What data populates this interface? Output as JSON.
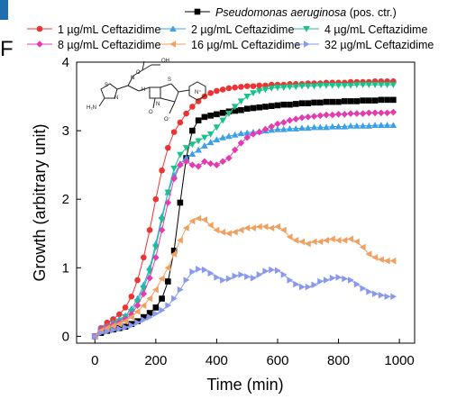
{
  "panel_label": "F",
  "colors": {
    "corner_accent": "#1f6fb0"
  },
  "chart_data": {
    "type": "line",
    "xlabel": "Time (min)",
    "ylabel": "Growth (arbitrary unit)",
    "xlim": [
      -60,
      1050
    ],
    "ylim": [
      -0.1,
      4.0
    ],
    "xticks": [
      0,
      200,
      400,
      600,
      800,
      1000
    ],
    "yticks": [
      0,
      1,
      2,
      3,
      4
    ],
    "grid": false,
    "legend_position": "top",
    "inset": "ceftazidime-structure",
    "series": [
      {
        "name_italic": "Pseudomonas aeruginosa",
        "name": " (pos. ctr.)",
        "color": "#000000",
        "marker": "square",
        "x": [
          0,
          20,
          40,
          60,
          80,
          100,
          120,
          140,
          160,
          180,
          200,
          220,
          240,
          260,
          280,
          300,
          320,
          340,
          360,
          380,
          400,
          420,
          440,
          460,
          480,
          500,
          520,
          540,
          560,
          580,
          600,
          620,
          640,
          660,
          680,
          700,
          720,
          740,
          760,
          780,
          800,
          820,
          840,
          860,
          880,
          900,
          920,
          940,
          960,
          980
        ],
        "y": [
          0,
          0.05,
          0.08,
          0.1,
          0.12,
          0.14,
          0.18,
          0.22,
          0.28,
          0.34,
          0.42,
          0.55,
          0.8,
          1.25,
          1.95,
          2.6,
          3.0,
          3.15,
          3.2,
          3.22,
          3.24,
          3.26,
          3.28,
          3.29,
          3.3,
          3.32,
          3.33,
          3.34,
          3.35,
          3.36,
          3.37,
          3.38,
          3.38,
          3.39,
          3.4,
          3.4,
          3.41,
          3.41,
          3.42,
          3.42,
          3.42,
          3.43,
          3.43,
          3.43,
          3.44,
          3.44,
          3.44,
          3.45,
          3.45,
          3.45
        ]
      },
      {
        "name": "1 µg/mL Ceftazidime",
        "color": "#ee3333",
        "marker": "circle",
        "x": [
          0,
          20,
          40,
          60,
          80,
          100,
          120,
          140,
          160,
          180,
          200,
          220,
          240,
          260,
          280,
          300,
          320,
          340,
          360,
          380,
          400,
          420,
          440,
          460,
          480,
          500,
          520,
          540,
          560,
          580,
          600,
          620,
          640,
          660,
          680,
          700,
          720,
          740,
          760,
          780,
          800,
          820,
          840,
          860,
          880,
          900,
          920,
          940,
          960,
          980
        ],
        "y": [
          0,
          0.12,
          0.2,
          0.25,
          0.32,
          0.42,
          0.58,
          0.82,
          1.15,
          1.55,
          2.0,
          2.42,
          2.75,
          2.98,
          3.12,
          3.25,
          3.35,
          3.43,
          3.5,
          3.55,
          3.58,
          3.6,
          3.62,
          3.63,
          3.64,
          3.65,
          3.65,
          3.66,
          3.66,
          3.67,
          3.67,
          3.67,
          3.68,
          3.68,
          3.68,
          3.69,
          3.69,
          3.69,
          3.7,
          3.7,
          3.7,
          3.7,
          3.71,
          3.71,
          3.71,
          3.71,
          3.72,
          3.72,
          3.72,
          3.72
        ]
      },
      {
        "name": "2 µg/mL Ceftazidime",
        "color": "#3aa0ea",
        "marker": "triangle-up",
        "x": [
          0,
          20,
          40,
          60,
          80,
          100,
          120,
          140,
          160,
          180,
          200,
          220,
          240,
          260,
          280,
          300,
          320,
          340,
          360,
          380,
          400,
          420,
          440,
          460,
          480,
          500,
          520,
          540,
          560,
          580,
          600,
          620,
          640,
          660,
          680,
          700,
          720,
          740,
          760,
          780,
          800,
          820,
          840,
          860,
          880,
          900,
          920,
          940,
          960,
          980
        ],
        "y": [
          0,
          0.1,
          0.15,
          0.2,
          0.25,
          0.3,
          0.4,
          0.55,
          0.75,
          1.0,
          1.35,
          1.75,
          2.1,
          2.35,
          2.52,
          2.6,
          2.66,
          2.72,
          2.78,
          2.83,
          2.87,
          2.9,
          2.92,
          2.94,
          2.96,
          2.97,
          2.98,
          2.99,
          3.0,
          3.01,
          3.02,
          3.02,
          3.03,
          3.03,
          3.04,
          3.04,
          3.05,
          3.05,
          3.05,
          3.06,
          3.06,
          3.06,
          3.07,
          3.07,
          3.07,
          3.07,
          3.08,
          3.08,
          3.08,
          3.08
        ]
      },
      {
        "name": "4 µg/mL Ceftazidime",
        "color": "#18c28a",
        "marker": "triangle-down",
        "x": [
          0,
          20,
          40,
          60,
          80,
          100,
          120,
          140,
          160,
          180,
          200,
          220,
          240,
          260,
          280,
          300,
          320,
          340,
          360,
          380,
          400,
          420,
          440,
          460,
          480,
          500,
          520,
          540,
          560,
          580,
          600,
          620,
          640,
          660,
          680,
          700,
          720,
          740,
          760,
          780,
          800,
          820,
          840,
          860,
          880,
          900,
          920,
          940,
          960,
          980
        ],
        "y": [
          0,
          0.1,
          0.14,
          0.18,
          0.22,
          0.28,
          0.36,
          0.5,
          0.7,
          0.95,
          1.3,
          1.7,
          2.1,
          2.45,
          2.65,
          2.75,
          2.8,
          2.85,
          2.9,
          2.95,
          3.05,
          3.15,
          3.25,
          3.35,
          3.43,
          3.5,
          3.55,
          3.58,
          3.6,
          3.62,
          3.63,
          3.63,
          3.64,
          3.64,
          3.65,
          3.65,
          3.65,
          3.66,
          3.66,
          3.66,
          3.66,
          3.66,
          3.66,
          3.67,
          3.67,
          3.67,
          3.67,
          3.67,
          3.67,
          3.67
        ]
      },
      {
        "name": "8 µg/mL Ceftazidime",
        "color": "#e43cb0",
        "marker": "diamond",
        "x": [
          0,
          20,
          40,
          60,
          80,
          100,
          120,
          140,
          160,
          180,
          200,
          220,
          240,
          260,
          280,
          300,
          320,
          340,
          360,
          380,
          400,
          420,
          440,
          460,
          480,
          500,
          520,
          540,
          560,
          580,
          600,
          620,
          640,
          660,
          680,
          700,
          720,
          740,
          760,
          780,
          800,
          820,
          840,
          860,
          880,
          900,
          920,
          940,
          960,
          980
        ],
        "y": [
          0,
          0.1,
          0.14,
          0.17,
          0.2,
          0.25,
          0.32,
          0.45,
          0.62,
          0.85,
          1.15,
          1.55,
          1.95,
          2.3,
          2.5,
          2.55,
          2.5,
          2.48,
          2.55,
          2.52,
          2.5,
          2.55,
          2.6,
          2.72,
          2.82,
          2.9,
          2.95,
          2.98,
          3.02,
          3.06,
          3.1,
          3.12,
          3.15,
          3.17,
          3.19,
          3.2,
          3.21,
          3.22,
          3.23,
          3.23,
          3.24,
          3.24,
          3.25,
          3.25,
          3.25,
          3.26,
          3.26,
          3.26,
          3.26,
          3.27
        ]
      },
      {
        "name": "16 µg/mL Ceftazidime",
        "color": "#f0a060",
        "marker": "triangle-left",
        "x": [
          0,
          20,
          40,
          60,
          80,
          100,
          120,
          140,
          160,
          180,
          200,
          220,
          240,
          260,
          280,
          300,
          320,
          340,
          360,
          380,
          400,
          420,
          440,
          460,
          480,
          500,
          520,
          540,
          560,
          580,
          600,
          620,
          640,
          660,
          680,
          700,
          720,
          740,
          760,
          780,
          800,
          820,
          840,
          860,
          880,
          900,
          920,
          940,
          960,
          980
        ],
        "y": [
          0,
          0.08,
          0.12,
          0.15,
          0.18,
          0.22,
          0.28,
          0.36,
          0.45,
          0.55,
          0.68,
          0.84,
          1.0,
          1.2,
          1.4,
          1.58,
          1.68,
          1.72,
          1.7,
          1.62,
          1.55,
          1.52,
          1.5,
          1.52,
          1.55,
          1.58,
          1.58,
          1.6,
          1.6,
          1.58,
          1.6,
          1.55,
          1.45,
          1.4,
          1.38,
          1.35,
          1.38,
          1.38,
          1.4,
          1.42,
          1.4,
          1.4,
          1.42,
          1.38,
          1.3,
          1.2,
          1.15,
          1.12,
          1.1,
          1.1
        ]
      },
      {
        "name": "32 µg/mL Ceftazidime",
        "color": "#8899ee",
        "marker": "triangle-right",
        "x": [
          0,
          20,
          40,
          60,
          80,
          100,
          120,
          140,
          160,
          180,
          200,
          220,
          240,
          260,
          280,
          300,
          320,
          340,
          360,
          380,
          400,
          420,
          440,
          460,
          480,
          500,
          520,
          540,
          560,
          580,
          600,
          620,
          640,
          660,
          680,
          700,
          720,
          740,
          760,
          780,
          800,
          820,
          840,
          860,
          880,
          900,
          920,
          940,
          960,
          980
        ],
        "y": [
          0,
          0.05,
          0.07,
          0.09,
          0.11,
          0.13,
          0.16,
          0.2,
          0.24,
          0.28,
          0.33,
          0.38,
          0.45,
          0.55,
          0.68,
          0.82,
          0.94,
          0.98,
          0.97,
          0.92,
          0.86,
          0.82,
          0.84,
          0.88,
          0.9,
          0.87,
          0.85,
          0.9,
          0.95,
          0.97,
          0.96,
          0.9,
          0.82,
          0.76,
          0.72,
          0.72,
          0.75,
          0.8,
          0.82,
          0.85,
          0.86,
          0.84,
          0.82,
          0.76,
          0.7,
          0.65,
          0.62,
          0.6,
          0.58,
          0.58
        ]
      }
    ]
  }
}
